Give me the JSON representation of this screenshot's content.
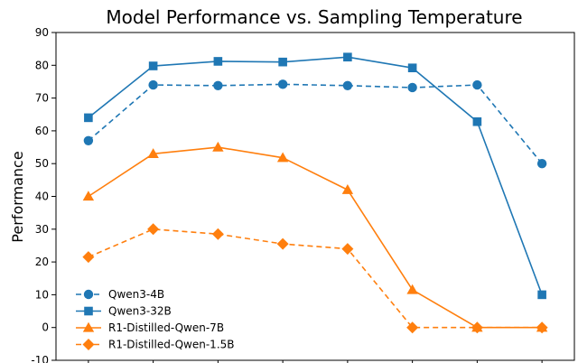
{
  "chart_data": {
    "type": "line",
    "title": "Model Performance vs. Sampling Temperature",
    "xlabel": "",
    "ylabel": "Performance",
    "ylim": [
      -10,
      90
    ],
    "yticks": [
      -10,
      0,
      10,
      20,
      30,
      40,
      50,
      60,
      70,
      80,
      90
    ],
    "x": [
      1,
      2,
      3,
      4,
      5,
      6,
      7,
      8
    ],
    "grid": false,
    "legend_position": "lower-left",
    "series": [
      {
        "name": "Qwen3-4B",
        "color": "#1f77b4",
        "linestyle": "dashed",
        "marker": "circle",
        "values": [
          57,
          74,
          73.8,
          74.2,
          73.8,
          73.2,
          74,
          50
        ]
      },
      {
        "name": "Qwen3-32B",
        "color": "#1f77b4",
        "linestyle": "solid",
        "marker": "square",
        "values": [
          64,
          79.8,
          81.2,
          81,
          82.5,
          79.2,
          62.8,
          10
        ]
      },
      {
        "name": "R1-Distilled-Qwen-7B",
        "color": "#ff7f0e",
        "linestyle": "solid",
        "marker": "triangle",
        "values": [
          40,
          53,
          55,
          51.8,
          42,
          11.5,
          0,
          0
        ]
      },
      {
        "name": "R1-Distilled-Qwen-1.5B",
        "color": "#ff7f0e",
        "linestyle": "dashed",
        "marker": "diamond",
        "values": [
          21.5,
          30,
          28.5,
          25.5,
          24,
          0,
          0,
          0
        ]
      }
    ]
  }
}
